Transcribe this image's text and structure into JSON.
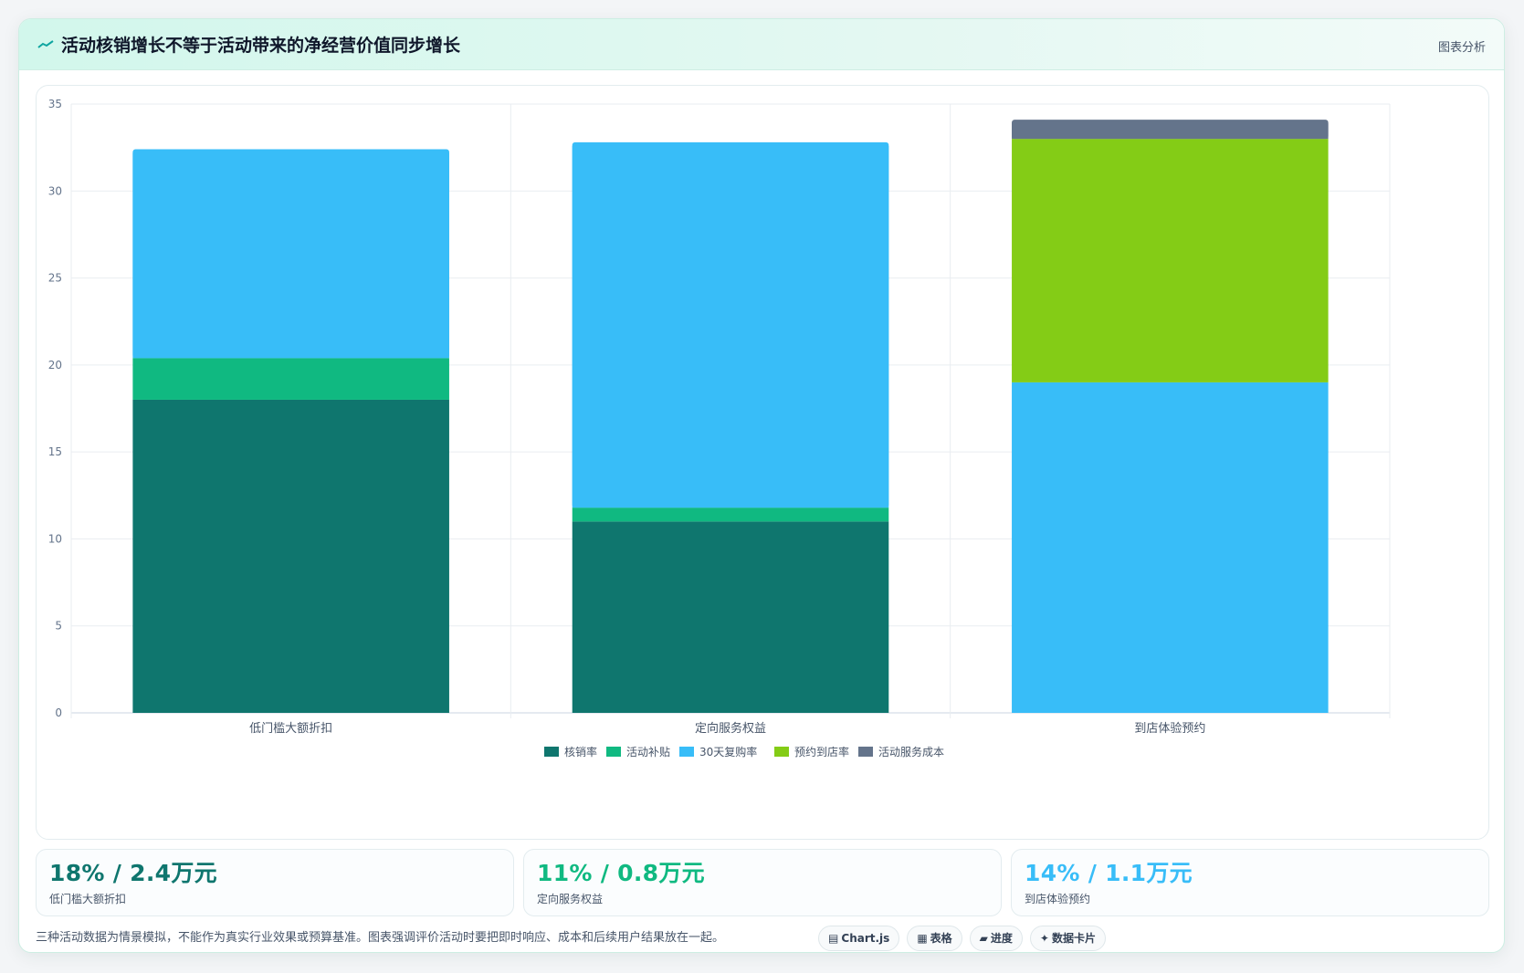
{
  "header": {
    "icon": "trend-line-icon",
    "title": "活动核销增长不等于活动带来的净经营价值同步增长",
    "tag": "图表分析"
  },
  "chart_data": {
    "type": "bar",
    "stacked": true,
    "categories": [
      "低门槛大额折扣",
      "定向服务权益",
      "到店体验预约"
    ],
    "series": [
      {
        "name": "核销率",
        "color": "#0f766e",
        "values": [
          18,
          11,
          0
        ]
      },
      {
        "name": "活动补贴",
        "color": "#10b981",
        "values": [
          2.4,
          0.8,
          0
        ]
      },
      {
        "name": "30天复购率",
        "color": "#38bdf8",
        "values": [
          12,
          21,
          19
        ]
      },
      {
        "name": "预约到店率",
        "color": "#84cc16",
        "values": [
          0,
          0,
          14
        ]
      },
      {
        "name": "活动服务成本",
        "color": "#64748b",
        "values": [
          0,
          0,
          1.1
        ]
      }
    ],
    "ylim": [
      0,
      35
    ],
    "yticks": [
      0,
      5,
      10,
      15,
      20,
      25,
      30,
      35
    ],
    "grid": true,
    "legend": "bottom"
  },
  "stats": [
    {
      "value": "18% / 2.4万元",
      "label": "低门槛大额折扣",
      "color": "#0f766e"
    },
    {
      "value": "11% / 0.8万元",
      "label": "定向服务权益",
      "color": "#10b981"
    },
    {
      "value": "14% / 1.1万元",
      "label": "到店体验预约",
      "color": "#38bdf8"
    }
  ],
  "footer": {
    "note": "三种活动数据为情景模拟，不能作为真实行业效果或预算基准。图表强调评价活动时要把即时响应、成本和后续用户结果放在一起。",
    "pills": [
      {
        "icon": "chart-icon",
        "glyph": "▤",
        "label": "Chart.js"
      },
      {
        "icon": "table-icon",
        "glyph": "▦",
        "label": "表格"
      },
      {
        "icon": "progress-icon",
        "glyph": "▰",
        "label": "进度"
      },
      {
        "icon": "sparkle-icon",
        "glyph": "✦",
        "label": "数据卡片"
      }
    ]
  }
}
